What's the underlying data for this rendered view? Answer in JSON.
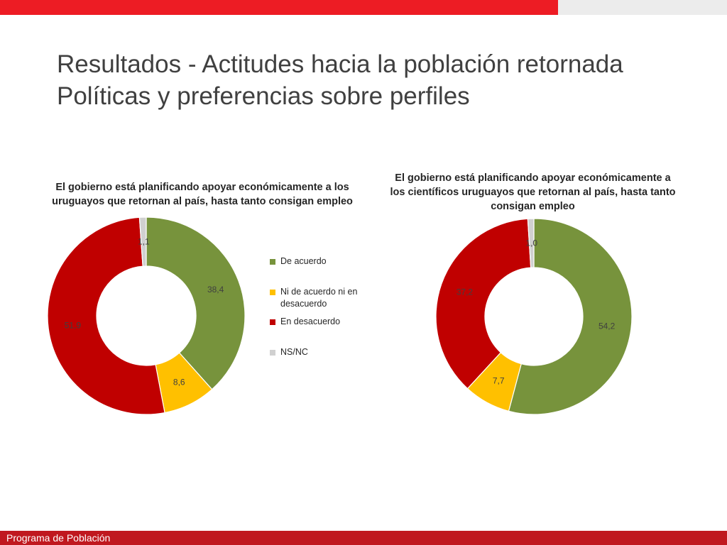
{
  "slide": {
    "title_line1": "Resultados - Actitudes hacia la población retornada",
    "title_line2": "Políticas y preferencias sobre perfiles",
    "footer": "Programa de Población"
  },
  "colors": {
    "top_bar": "#ed1c24",
    "footer_bar": "#c0181f"
  },
  "chart_data": [
    {
      "type": "pie",
      "variant": "donut",
      "title": "El gobierno está planificando apoyar económicamente a los uruguayos que retornan al país, hasta tanto consigan empleo",
      "legend_position": "right",
      "slices": [
        {
          "name": "De acuerdo",
          "value": 38.4,
          "label": "38,4",
          "color": "#77933c"
        },
        {
          "name": "Ni de acuerdo ni en desacuerdo",
          "value": 8.6,
          "label": "8,6",
          "color": "#ffc000"
        },
        {
          "name": "En desacuerdo",
          "value": 51.9,
          "label": "51,9",
          "color": "#c00000"
        },
        {
          "name": "NS/NC",
          "value": 1.1,
          "label": "1,1",
          "color": "#d0d0d0"
        }
      ]
    },
    {
      "type": "pie",
      "variant": "donut",
      "title": "El gobierno está planificando apoyar económicamente a los científicos uruguayos que retornan al país, hasta tanto consigan empleo",
      "legend_position": "none",
      "slices": [
        {
          "name": "De acuerdo",
          "value": 54.2,
          "label": "54,2",
          "color": "#77933c"
        },
        {
          "name": "Ni de acuerdo ni en desacuerdo",
          "value": 7.7,
          "label": "7,7",
          "color": "#ffc000"
        },
        {
          "name": "En desacuerdo",
          "value": 37.2,
          "label": "37,2",
          "color": "#c00000"
        },
        {
          "name": "NS/NC",
          "value": 1.0,
          "label": "1,0",
          "color": "#d0d0d0"
        }
      ]
    }
  ]
}
